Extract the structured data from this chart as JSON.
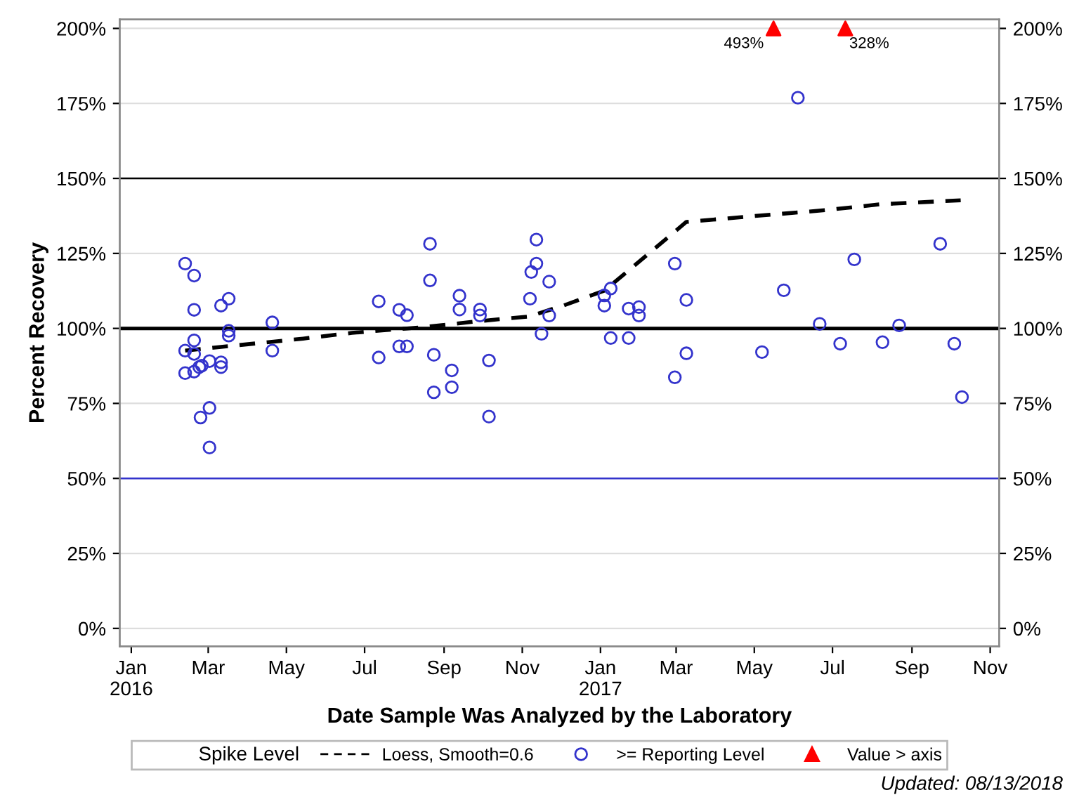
{
  "chart_data": {
    "type": "scatter",
    "xlabel": "Date Sample Was Analyzed by the Laboratory",
    "ylabel": "Percent Recovery",
    "legend_title": "Spike Level",
    "xlim": [
      "2015-12-23",
      "2017-11-08"
    ],
    "xticks": [
      {
        "value": "2016-01-01",
        "label": "Jan\n2016"
      },
      {
        "value": "2016-03-01",
        "label": "Mar"
      },
      {
        "value": "2016-05-01",
        "label": "May"
      },
      {
        "value": "2016-07-01",
        "label": "Jul"
      },
      {
        "value": "2016-09-01",
        "label": "Sep"
      },
      {
        "value": "2016-11-01",
        "label": "Nov"
      },
      {
        "value": "2017-01-01",
        "label": "Jan\n2017"
      },
      {
        "value": "2017-03-01",
        "label": "Mar"
      },
      {
        "value": "2017-05-01",
        "label": "May"
      },
      {
        "value": "2017-07-01",
        "label": "Jul"
      },
      {
        "value": "2017-09-01",
        "label": "Sep"
      },
      {
        "value": "2017-11-01",
        "label": "Nov"
      }
    ],
    "ylim": [
      -6,
      203
    ],
    "yticks": [
      {
        "value": 0,
        "label": "0%"
      },
      {
        "value": 25,
        "label": "25%"
      },
      {
        "value": 50,
        "label": "50%"
      },
      {
        "value": 75,
        "label": "75%"
      },
      {
        "value": 100,
        "label": "100%"
      },
      {
        "value": 125,
        "label": "125%"
      },
      {
        "value": 150,
        "label": "150%"
      },
      {
        "value": 175,
        "label": "175%"
      },
      {
        "value": 200,
        "label": "200%"
      }
    ],
    "y2lim": [
      -6,
      203
    ],
    "y2ticks": [
      {
        "value": 0,
        "label": "0%"
      },
      {
        "value": 25,
        "label": "25%"
      },
      {
        "value": 50,
        "label": "50%"
      },
      {
        "value": 75,
        "label": "75%"
      },
      {
        "value": 100,
        "label": "100%"
      },
      {
        "value": 125,
        "label": "125%"
      },
      {
        "value": 150,
        "label": "150%"
      },
      {
        "value": 175,
        "label": "175%"
      },
      {
        "value": 200,
        "label": "200%"
      }
    ],
    "grid": "y",
    "legend": "bottom",
    "ref_lines": [
      {
        "axis": "y",
        "value": 150,
        "color": "#000000"
      },
      {
        "axis": "y",
        "value": 100,
        "color": "#000000"
      },
      {
        "axis": "y",
        "value": 50,
        "color": "#3333cc"
      }
    ],
    "series": [
      {
        "name": "Loess, Smooth=0.6",
        "type": "line",
        "color": "#000000",
        "line_style": "dashed",
        "marker": "none",
        "x": [
          "2016-02-12",
          "2016-05-14",
          "2016-06-21",
          "2016-08-15",
          "2016-09-28",
          "2016-11-07",
          "2016-11-29",
          "2016-12-03",
          "2017-01-04",
          "2017-01-26",
          "2017-03-09",
          "2017-05-05",
          "2017-06-25",
          "2017-08-08",
          "2017-10-09"
        ],
        "values": [
          92.6,
          96.6,
          98.5,
          100.4,
          102.4,
          104.0,
          107.1,
          107.6,
          112.6,
          120.4,
          135.5,
          137.6,
          139.4,
          141.4,
          142.7
        ]
      },
      {
        "name": ">= Reporting Level",
        "color": "#3333cc",
        "marker": "circle",
        "x": [
          "2016-02-12",
          "2016-02-12",
          "2016-02-12",
          "2016-02-19",
          "2016-02-19",
          "2016-02-19",
          "2016-02-19",
          "2016-02-19",
          "2016-02-23",
          "2016-02-24",
          "2016-02-25",
          "2016-03-02",
          "2016-03-02",
          "2016-03-02",
          "2016-03-11",
          "2016-03-11",
          "2016-03-11",
          "2016-03-17",
          "2016-03-17",
          "2016-03-17",
          "2016-04-20",
          "2016-04-20",
          "2016-07-12",
          "2016-07-12",
          "2016-07-28",
          "2016-07-28",
          "2016-08-03",
          "2016-08-03",
          "2016-08-21",
          "2016-08-21",
          "2016-08-24",
          "2016-08-24",
          "2016-09-07",
          "2016-09-07",
          "2016-09-13",
          "2016-09-13",
          "2016-09-29",
          "2016-09-29",
          "2016-10-06",
          "2016-10-06",
          "2016-11-07",
          "2016-11-08",
          "2016-11-12",
          "2016-11-12",
          "2016-11-16",
          "2016-11-22",
          "2016-11-22",
          "2017-01-04",
          "2017-01-04",
          "2017-01-09",
          "2017-01-09",
          "2017-01-23",
          "2017-01-23",
          "2017-01-31",
          "2017-01-31",
          "2017-02-28",
          "2017-02-28",
          "2017-03-09",
          "2017-03-09",
          "2017-05-07",
          "2017-05-24",
          "2017-06-04",
          "2017-06-21",
          "2017-07-07",
          "2017-07-18",
          "2017-08-09",
          "2017-08-22",
          "2017-09-23",
          "2017-10-04",
          "2017-10-10"
        ],
        "values": [
          121.6,
          92.6,
          85.1,
          117.6,
          106.2,
          96.0,
          91.5,
          85.6,
          87.1,
          70.3,
          87.6,
          89.1,
          73.5,
          60.3,
          107.6,
          88.7,
          87.1,
          109.9,
          99.2,
          97.6,
          102.0,
          92.6,
          109.0,
          90.3,
          106.2,
          94.0,
          104.4,
          94.0,
          128.2,
          116.0,
          91.2,
          78.7,
          86.0,
          80.4,
          110.9,
          106.3,
          106.3,
          104.3,
          89.3,
          70.6,
          109.9,
          118.8,
          129.6,
          121.6,
          98.2,
          115.6,
          104.3,
          111.0,
          107.6,
          113.3,
          96.8,
          106.6,
          96.8,
          107.1,
          104.3,
          121.6,
          83.7,
          109.5,
          91.7,
          92.1,
          112.7,
          176.9,
          101.5,
          94.9,
          123.0,
          95.4,
          101.0,
          128.2,
          94.9,
          77.1
        ]
      },
      {
        "name": "Value > axis",
        "color": "#ff0000",
        "marker": "triangle",
        "x": [
          "2017-05-16",
          "2017-07-11"
        ],
        "values": [
          200,
          200
        ]
      }
    ],
    "annotations": [
      {
        "text": "493%",
        "x": "2017-05-16",
        "y": 200
      },
      {
        "text": "328%",
        "x": "2017-07-11",
        "y": 200
      },
      "Updated: 08/13/2018"
    ]
  }
}
